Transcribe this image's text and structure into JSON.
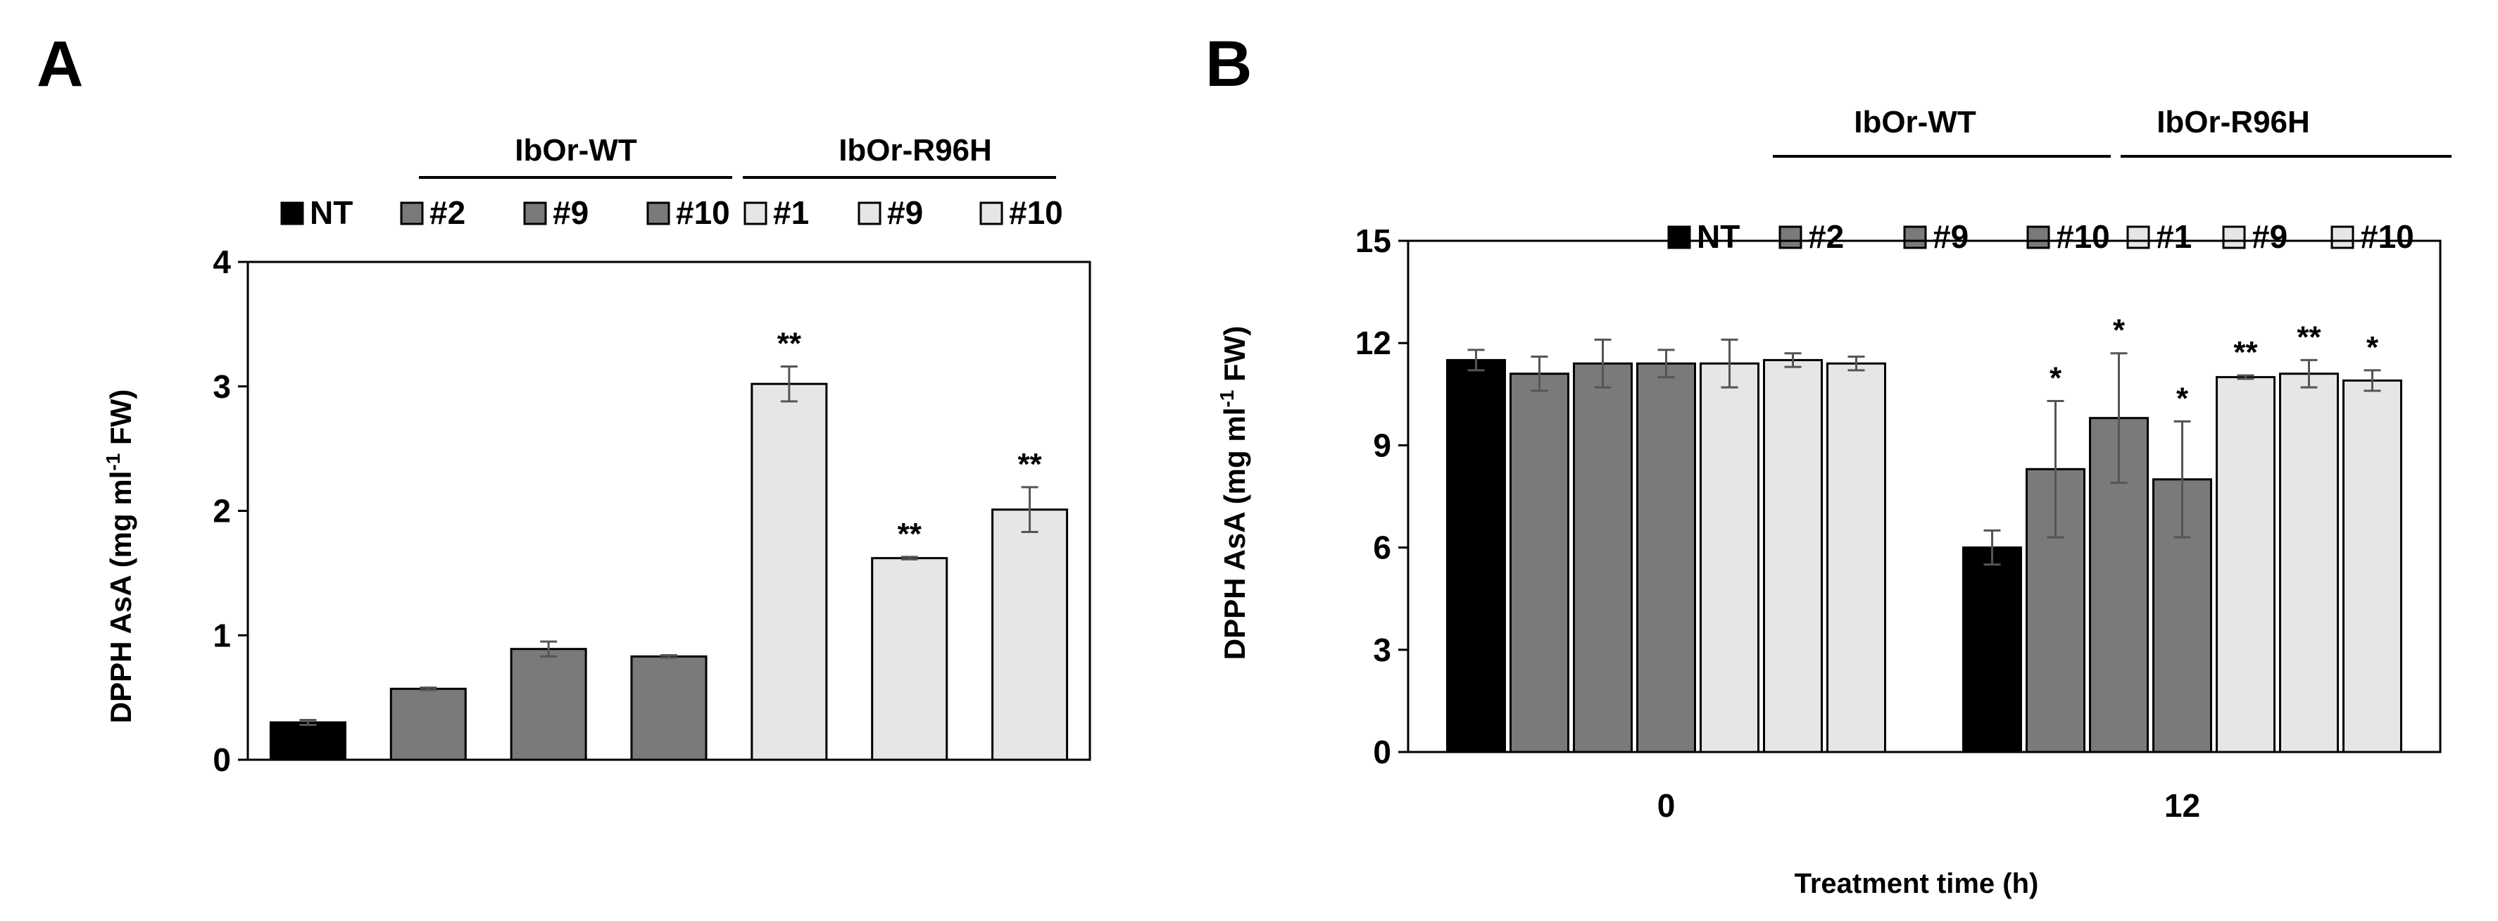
{
  "chart_data": [
    {
      "panel": "A",
      "type": "bar",
      "ylabel": {
        "main": "DPPH AsA (mg ml",
        "sup": "-1",
        "tail": " FW)"
      },
      "ylim": [
        0,
        4
      ],
      "yticks": [
        "0",
        "1",
        "2",
        "3",
        "4"
      ],
      "categories": [
        "NT",
        "#2",
        "#9",
        "#10",
        "#1",
        "#9",
        "#10"
      ],
      "values": [
        0.3,
        0.57,
        0.89,
        0.83,
        3.02,
        1.62,
        2.01
      ],
      "errors": [
        0.02,
        0.01,
        0.06,
        0.01,
        0.14,
        0.01,
        0.18
      ],
      "significance": [
        "",
        "",
        "",
        "",
        "**",
        "**",
        "**"
      ],
      "groups": [
        "NT",
        "WT",
        "WT",
        "WT",
        "R96H",
        "R96H",
        "R96H"
      ],
      "legend": [
        "NT",
        "#2",
        "#9",
        "#10",
        "#1",
        "#9",
        "#10"
      ],
      "group_headers": [
        "IbOr-WT",
        "IbOr-R96H"
      ]
    },
    {
      "panel": "B",
      "type": "bar",
      "ylabel": {
        "main": "DPPH AsA (mg ml",
        "sup": "-1",
        "tail": " FW)"
      },
      "xlabel": "Treatment time (h)",
      "ylim": [
        0,
        15
      ],
      "yticks": [
        "0",
        "3",
        "6",
        "9",
        "12",
        "15"
      ],
      "categories": [
        "0",
        "12"
      ],
      "series": [
        {
          "name": "NT",
          "group": "NT",
          "values": [
            11.5,
            6.0
          ],
          "errors": [
            0.3,
            0.5
          ],
          "significance": [
            "",
            ""
          ]
        },
        {
          "name": "#2",
          "group": "WT",
          "values": [
            11.1,
            8.3
          ],
          "errors": [
            0.5,
            2.0
          ],
          "significance": [
            "",
            "*"
          ]
        },
        {
          "name": "#9",
          "group": "WT",
          "values": [
            11.4,
            9.8
          ],
          "errors": [
            0.7,
            1.9
          ],
          "significance": [
            "",
            "*"
          ]
        },
        {
          "name": "#10",
          "group": "WT",
          "values": [
            11.4,
            8.0
          ],
          "errors": [
            0.4,
            1.7
          ],
          "significance": [
            "",
            "*"
          ]
        },
        {
          "name": "#1",
          "group": "R96H",
          "values": [
            11.4,
            11.0
          ],
          "errors": [
            0.7,
            0.05
          ],
          "significance": [
            "",
            "**"
          ]
        },
        {
          "name": "#9",
          "group": "R96H",
          "values": [
            11.5,
            11.1
          ],
          "errors": [
            0.2,
            0.4
          ],
          "significance": [
            "",
            "**"
          ]
        },
        {
          "name": "#10",
          "group": "R96H",
          "values": [
            11.4,
            10.9
          ],
          "errors": [
            0.2,
            0.3
          ],
          "significance": [
            "",
            "*"
          ]
        }
      ],
      "legend": [
        "NT",
        "#2",
        "#9",
        "#10",
        "#1",
        "#9",
        "#10"
      ],
      "group_headers": [
        "IbOr-WT",
        "IbOr-R96H"
      ]
    }
  ],
  "colors": {
    "NT": "#000000",
    "WT": "#7a7a7a",
    "R96H": "#e6e6e6",
    "border": "#000000"
  }
}
